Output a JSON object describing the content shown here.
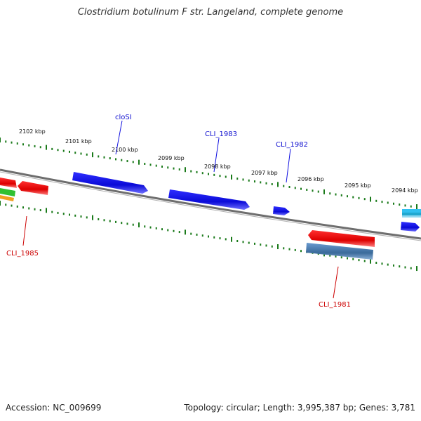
{
  "title": "Clostridium botulinum F str. Langeland, complete genome",
  "footer": {
    "accession": "Accession: NC_009699",
    "summary": "Topology: circular; Length: 3,995,387 bp; Genes: 3,781"
  },
  "ticks": [
    {
      "label": "2102 kbp"
    },
    {
      "label": "2101 kbp"
    },
    {
      "label": "2100 kbp"
    },
    {
      "label": "2099 kbp"
    },
    {
      "label": "2098 kbp"
    },
    {
      "label": "2097 kbp"
    },
    {
      "label": "2096 kbp"
    },
    {
      "label": "2095 kbp"
    },
    {
      "label": "2094 kbp"
    }
  ],
  "genes": [
    {
      "name": "cloSI",
      "strand": "forward"
    },
    {
      "name": "CLI_1983",
      "strand": "forward"
    },
    {
      "name": "CLI_1982",
      "strand": "forward"
    },
    {
      "name": "CLI_1985",
      "strand": "reverse"
    },
    {
      "name": "CLI_1981",
      "strand": "reverse"
    }
  ],
  "colors": {
    "forward": "#1010e0",
    "reverse": "#e00000",
    "backbone": "#707070",
    "tick": "#1a7a1a",
    "rna": "#4a7fb0",
    "cyan": "#20b8e0"
  }
}
